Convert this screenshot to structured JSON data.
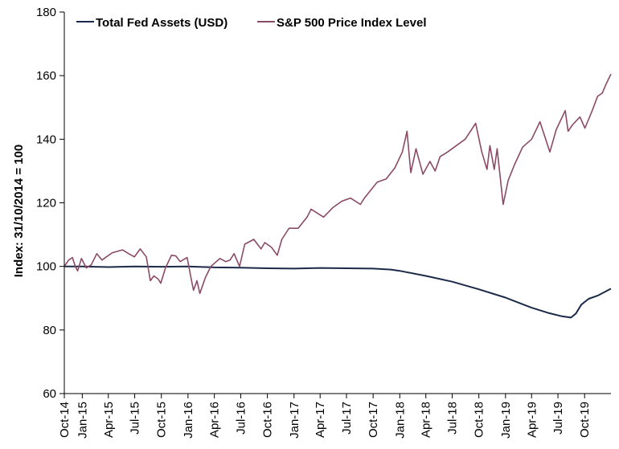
{
  "chart_data": {
    "type": "line",
    "title": "",
    "xlabel": "",
    "ylabel": "Index: 31/10/2014 = 100",
    "ylim": [
      60,
      180
    ],
    "yticks": [
      60,
      80,
      100,
      120,
      140,
      160,
      180
    ],
    "xlim": [
      "2014-10-31",
      "2019-12-31"
    ],
    "x_ticks": [
      {
        "date": "2014-10-01",
        "label": "Oct-14"
      },
      {
        "date": "2015-01-01",
        "label": "Jan-15"
      },
      {
        "date": "2015-04-01",
        "label": "Apr-15"
      },
      {
        "date": "2015-07-01",
        "label": "Jul-15"
      },
      {
        "date": "2015-10-01",
        "label": "Oct-15"
      },
      {
        "date": "2016-01-01",
        "label": "Jan-16"
      },
      {
        "date": "2016-04-01",
        "label": "Apr-16"
      },
      {
        "date": "2016-07-01",
        "label": "Jul-16"
      },
      {
        "date": "2016-10-01",
        "label": "Oct-16"
      },
      {
        "date": "2017-01-01",
        "label": "Jan-17"
      },
      {
        "date": "2017-04-01",
        "label": "Apr-17"
      },
      {
        "date": "2017-07-01",
        "label": "Jul-17"
      },
      {
        "date": "2017-10-01",
        "label": "Oct-17"
      },
      {
        "date": "2018-01-01",
        "label": "Jan-18"
      },
      {
        "date": "2018-04-01",
        "label": "Apr-18"
      },
      {
        "date": "2018-07-01",
        "label": "Jul-18"
      },
      {
        "date": "2018-10-01",
        "label": "Oct-18"
      },
      {
        "date": "2019-01-01",
        "label": "Jan-19"
      },
      {
        "date": "2019-04-01",
        "label": "Apr-19"
      },
      {
        "date": "2019-07-01",
        "label": "Jul-19"
      },
      {
        "date": "2019-10-01",
        "label": "Oct-19"
      }
    ],
    "grid": false,
    "legend_position": "top-left",
    "series": [
      {
        "name": "Total Fed Assets (USD)",
        "color": "#1b2a49",
        "points": [
          [
            "2014-10-31",
            100.0
          ],
          [
            "2015-01-01",
            100.0
          ],
          [
            "2015-04-01",
            99.8
          ],
          [
            "2015-07-01",
            100.0
          ],
          [
            "2015-10-01",
            99.9
          ],
          [
            "2016-01-01",
            100.0
          ],
          [
            "2016-04-01",
            99.7
          ],
          [
            "2016-07-01",
            99.6
          ],
          [
            "2016-10-01",
            99.4
          ],
          [
            "2017-01-01",
            99.3
          ],
          [
            "2017-04-01",
            99.5
          ],
          [
            "2017-07-01",
            99.4
          ],
          [
            "2017-10-01",
            99.3
          ],
          [
            "2017-12-01",
            99.0
          ],
          [
            "2018-01-01",
            98.6
          ],
          [
            "2018-04-01",
            97.0
          ],
          [
            "2018-07-01",
            95.2
          ],
          [
            "2018-10-01",
            92.8
          ],
          [
            "2019-01-01",
            90.2
          ],
          [
            "2019-04-01",
            87.0
          ],
          [
            "2019-06-01",
            85.3
          ],
          [
            "2019-07-15",
            84.3
          ],
          [
            "2019-08-15",
            83.9
          ],
          [
            "2019-09-01",
            85.2
          ],
          [
            "2019-09-20",
            88.0
          ],
          [
            "2019-10-15",
            89.8
          ],
          [
            "2019-11-15",
            90.8
          ],
          [
            "2019-12-31",
            93.0
          ]
        ]
      },
      {
        "name": "S&P 500 Price Index Level",
        "color": "#8b4a65",
        "points": [
          [
            "2014-10-31",
            100.0
          ],
          [
            "2014-11-15",
            102.0
          ],
          [
            "2014-11-28",
            102.8
          ],
          [
            "2014-12-08",
            100.0
          ],
          [
            "2014-12-16",
            98.6
          ],
          [
            "2014-12-29",
            102.5
          ],
          [
            "2015-01-15",
            99.5
          ],
          [
            "2015-02-01",
            100.5
          ],
          [
            "2015-02-20",
            104.0
          ],
          [
            "2015-03-10",
            102.0
          ],
          [
            "2015-03-25",
            103.0
          ],
          [
            "2015-04-15",
            104.3
          ],
          [
            "2015-05-20",
            105.2
          ],
          [
            "2015-06-10",
            104.0
          ],
          [
            "2015-06-30",
            103.0
          ],
          [
            "2015-07-20",
            105.5
          ],
          [
            "2015-08-10",
            103.0
          ],
          [
            "2015-08-24",
            95.5
          ],
          [
            "2015-09-05",
            97.0
          ],
          [
            "2015-09-20",
            96.0
          ],
          [
            "2015-09-29",
            94.7
          ],
          [
            "2015-10-15",
            99.5
          ],
          [
            "2015-11-05",
            103.5
          ],
          [
            "2015-11-20",
            103.3
          ],
          [
            "2015-12-05",
            101.5
          ],
          [
            "2015-12-29",
            102.8
          ],
          [
            "2016-01-10",
            97.0
          ],
          [
            "2016-01-20",
            92.5
          ],
          [
            "2016-02-01",
            95.5
          ],
          [
            "2016-02-11",
            91.5
          ],
          [
            "2016-03-01",
            96.5
          ],
          [
            "2016-03-20",
            100.0
          ],
          [
            "2016-04-20",
            102.5
          ],
          [
            "2016-05-10",
            101.5
          ],
          [
            "2016-05-25",
            102.0
          ],
          [
            "2016-06-08",
            104.0
          ],
          [
            "2016-06-27",
            100.0
          ],
          [
            "2016-07-15",
            107.0
          ],
          [
            "2016-08-15",
            108.5
          ],
          [
            "2016-09-09",
            105.5
          ],
          [
            "2016-09-22",
            107.5
          ],
          [
            "2016-10-15",
            106.0
          ],
          [
            "2016-11-04",
            103.5
          ],
          [
            "2016-11-20",
            108.5
          ],
          [
            "2016-12-15",
            112.0
          ],
          [
            "2017-01-15",
            112.0
          ],
          [
            "2017-02-15",
            115.5
          ],
          [
            "2017-03-01",
            118.0
          ],
          [
            "2017-04-13",
            115.5
          ],
          [
            "2017-05-15",
            118.5
          ],
          [
            "2017-06-15",
            120.5
          ],
          [
            "2017-07-15",
            121.5
          ],
          [
            "2017-08-18",
            119.5
          ],
          [
            "2017-09-01",
            121.5
          ],
          [
            "2017-10-15",
            126.5
          ],
          [
            "2017-11-15",
            127.5
          ],
          [
            "2017-12-15",
            131.0
          ],
          [
            "2018-01-10",
            136.0
          ],
          [
            "2018-01-26",
            142.5
          ],
          [
            "2018-02-08",
            129.5
          ],
          [
            "2018-02-26",
            137.0
          ],
          [
            "2018-03-22",
            129.0
          ],
          [
            "2018-04-15",
            133.0
          ],
          [
            "2018-05-03",
            130.0
          ],
          [
            "2018-05-20",
            134.5
          ],
          [
            "2018-06-15",
            136.0
          ],
          [
            "2018-07-15",
            138.0
          ],
          [
            "2018-08-15",
            140.0
          ],
          [
            "2018-09-20",
            145.0
          ],
          [
            "2018-10-11",
            136.0
          ],
          [
            "2018-10-29",
            130.5
          ],
          [
            "2018-11-08",
            138.0
          ],
          [
            "2018-11-23",
            130.5
          ],
          [
            "2018-12-03",
            137.0
          ],
          [
            "2018-12-24",
            119.5
          ],
          [
            "2019-01-10",
            127.0
          ],
          [
            "2019-02-01",
            132.0
          ],
          [
            "2019-03-01",
            137.5
          ],
          [
            "2019-04-01",
            140.0
          ],
          [
            "2019-04-30",
            145.5
          ],
          [
            "2019-06-03",
            136.0
          ],
          [
            "2019-06-25",
            143.0
          ],
          [
            "2019-07-26",
            149.0
          ],
          [
            "2019-08-05",
            142.5
          ],
          [
            "2019-08-20",
            144.5
          ],
          [
            "2019-09-15",
            147.0
          ],
          [
            "2019-10-02",
            143.5
          ],
          [
            "2019-10-25",
            148.5
          ],
          [
            "2019-11-15",
            153.5
          ],
          [
            "2019-12-01",
            154.5
          ],
          [
            "2019-12-15",
            157.5
          ],
          [
            "2019-12-31",
            160.5
          ]
        ]
      }
    ]
  }
}
